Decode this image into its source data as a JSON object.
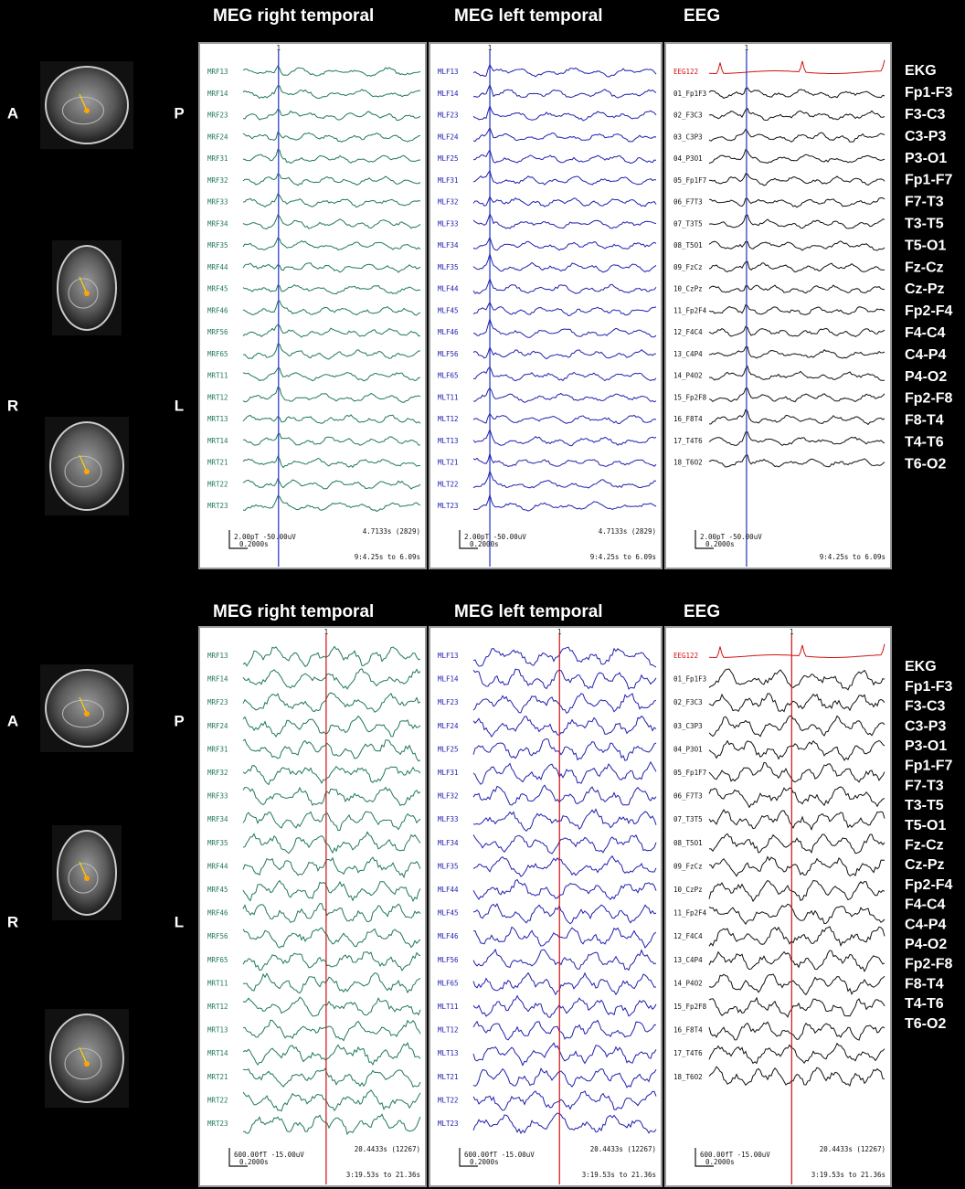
{
  "panels": [
    {
      "headers": [
        "MEG right temporal",
        "MEG left temporal",
        "EEG"
      ],
      "orientation": {
        "anterior": "A",
        "posterior": "P",
        "right": "R",
        "left": "L"
      },
      "cursor_color": "#2030c0",
      "windows": [
        {
          "channels": [
            "MRF13",
            "MRF14",
            "MRF23",
            "MRF24",
            "MRF31",
            "MRF32",
            "MRF33",
            "MRF34",
            "MRF35",
            "MRF44",
            "MRF45",
            "MRF46",
            "MRF56",
            "MRF65",
            "MRT11",
            "MRT12",
            "MRT13",
            "MRT14",
            "MRT21",
            "MRT22",
            "MRT23"
          ],
          "trace_color": "#1f7a55",
          "cursor_label": "1",
          "scale": "2.00pT -50.00uV",
          "time_scale": "0.2000s",
          "cursor_time": "4.7133s (2829)",
          "range": "9:4.25s to 6.09s"
        },
        {
          "channels": [
            "MLF13",
            "MLF14",
            "MLF23",
            "MLF24",
            "MLF25",
            "MLF31",
            "MLF32",
            "MLF33",
            "MLF34",
            "MLF35",
            "MLF44",
            "MLF45",
            "MLF46",
            "MLF56",
            "MLF65",
            "MLT11",
            "MLT12",
            "MLT13",
            "MLT21",
            "MLT22",
            "MLT23"
          ],
          "trace_color": "#2020b0",
          "cursor_label": "1",
          "scale": "2.00pT -50.00uV",
          "time_scale": "0.2000s",
          "cursor_time": "4.7133s (2829)",
          "range": "9:4.25s to 6.09s"
        },
        {
          "channels": [
            "EEG122",
            "01_Fp1F3",
            "02_F3C3",
            "03_C3P3",
            "04_P3O1",
            "05_Fp1F7",
            "06_F7T3",
            "07_T3T5",
            "08_T5O1",
            "09_FzCz",
            "10_CzPz",
            "11_Fp2F4",
            "12_F4C4",
            "13_C4P4",
            "14_P4O2",
            "15_Fp2F8",
            "16_F8T4",
            "17_T4T6",
            "18_T6O2"
          ],
          "trace_color": "#111111",
          "cursor_label": "1",
          "scale": "2.00pT -50.00uV",
          "time_scale": "0.2000s",
          "range": "9:4.25s to 6.09s"
        }
      ],
      "montage": [
        "EKG",
        "Fp1-F3",
        "F3-C3",
        "C3-P3",
        "P3-O1",
        "Fp1-F7",
        "F7-T3",
        "T3-T5",
        "T5-O1",
        "Fz-Cz",
        "Cz-Pz",
        "Fp2-F4",
        "F4-C4",
        "C4-P4",
        "P4-O2",
        "Fp2-F8",
        "F8-T4",
        "T4-T6",
        "T6-O2"
      ]
    },
    {
      "headers": [
        "MEG right temporal",
        "MEG left temporal",
        "EEG"
      ],
      "orientation": {
        "anterior": "A",
        "posterior": "P",
        "right": "R",
        "left": "L"
      },
      "cursor_color": "#d01010",
      "windows": [
        {
          "channels": [
            "MRF13",
            "MRF14",
            "MRF23",
            "MRF24",
            "MRF31",
            "MRF32",
            "MRF33",
            "MRF34",
            "MRF35",
            "MRF44",
            "MRF45",
            "MRF46",
            "MRF56",
            "MRF65",
            "MRT11",
            "MRT12",
            "MRT13",
            "MRT14",
            "MRT21",
            "MRT22",
            "MRT23"
          ],
          "trace_color": "#1f7a55",
          "cursor_label": "1",
          "scale": "600.00fT -15.00uV",
          "time_scale": "0.2000s",
          "cursor_time": "20.4433s (12267)",
          "range": "3:19.53s to 21.36s"
        },
        {
          "channels": [
            "MLF13",
            "MLF14",
            "MLF23",
            "MLF24",
            "MLF25",
            "MLF31",
            "MLF32",
            "MLF33",
            "MLF34",
            "MLF35",
            "MLF44",
            "MLF45",
            "MLF46",
            "MLF56",
            "MLF65",
            "MLT11",
            "MLT12",
            "MLT13",
            "MLT21",
            "MLT22",
            "MLT23"
          ],
          "trace_color": "#2020b0",
          "cursor_label": "1",
          "scale": "600.00fT -15.00uV",
          "time_scale": "0.2000s",
          "cursor_time": "20.4433s (12267)",
          "range": "3:19.53s to 21.36s"
        },
        {
          "channels": [
            "EEG122",
            "01_Fp1F3",
            "02_F3C3",
            "03_C3P3",
            "04_P3O1",
            "05_Fp1F7",
            "06_F7T3",
            "07_T3T5",
            "08_T5O1",
            "09_FzCz",
            "10_CzPz",
            "11_Fp2F4",
            "12_F4C4",
            "13_C4P4",
            "14_P4O2",
            "15_Fp2F8",
            "16_F8T4",
            "17_T4T6",
            "18_T6O2"
          ],
          "trace_color": "#111111",
          "cursor_label": "1",
          "scale": "600.00fT -15.00uV",
          "time_scale": "0.2000s",
          "cursor_time": "20.4433s (12267)",
          "range": "3:19.53s to 21.36s"
        }
      ],
      "montage": [
        "EKG",
        "Fp1-F3",
        "F3-C3",
        "C3-P3",
        "P3-O1",
        "Fp1-F7",
        "F7-T3",
        "T3-T5",
        "T5-O1",
        "Fz-Cz",
        "Cz-Pz",
        "Fp2-F4",
        "F4-C4",
        "C4-P4",
        "P4-O2",
        "Fp2-F8",
        "F8-T4",
        "T4-T6",
        "T6-O2"
      ]
    }
  ]
}
